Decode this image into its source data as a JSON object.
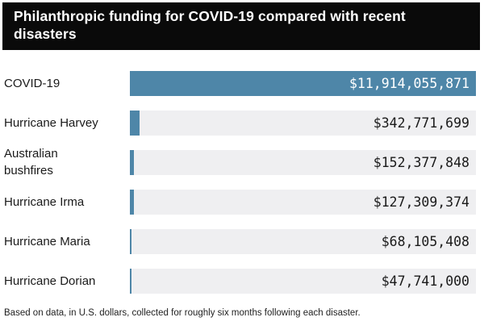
{
  "header": {
    "title": "Philanthropic funding for COVID-19 compared with recent disasters"
  },
  "footnote": "Based on data, in U.S. dollars, collected for roughly six months following each disaster.",
  "colors": {
    "header_bg": "#0a0a0a",
    "header_text": "#ffffff",
    "bar_fill": "#4e86a8",
    "bar_track": "#efeff1",
    "label_text": "#1a1a1a"
  },
  "chart_data": {
    "type": "bar",
    "orientation": "horizontal",
    "title": "Philanthropic funding for COVID-19 compared with recent disasters",
    "xlabel": "",
    "ylabel": "",
    "grid": false,
    "legend": false,
    "value_axis_max": 11914055871,
    "categories": [
      "COVID-19",
      "Hurricane Harvey",
      "Australian\nbushfires",
      "Hurricane Irma",
      "Hurricane Maria",
      "Hurricane Dorian"
    ],
    "values": [
      11914055871,
      342771699,
      152377848,
      127309374,
      68105408,
      47741000
    ],
    "value_labels": [
      "$11,914,055,871",
      "$342,771,699",
      "$152,377,848",
      "$127,309,374",
      "$68,105,408",
      "$47,741,000"
    ]
  }
}
